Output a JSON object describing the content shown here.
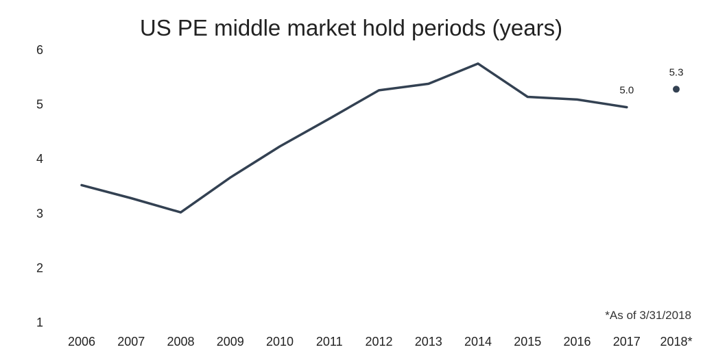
{
  "chart_data": {
    "type": "line",
    "title": "US PE middle market hold periods (years)",
    "xlabel": "",
    "ylabel": "",
    "categories": [
      "2006",
      "2007",
      "2008",
      "2009",
      "2010",
      "2011",
      "2012",
      "2013",
      "2014",
      "2015",
      "2016",
      "2017",
      "2018*"
    ],
    "y_ticks": [
      1,
      2,
      3,
      4,
      5,
      6
    ],
    "ylim": [
      1,
      6
    ],
    "grid": false,
    "series": [
      {
        "values": [
          3.52,
          3.28,
          3.02,
          3.66,
          4.23,
          4.74,
          5.26,
          5.38,
          5.75,
          5.14,
          5.09,
          4.95,
          5.28
        ],
        "color": "#334152",
        "style": "line",
        "separate_last_point": true
      }
    ],
    "data_labels": [
      {
        "category": "2017",
        "text": "5.0"
      },
      {
        "category": "2018*",
        "text": "5.3"
      }
    ],
    "footnote": "*As of 3/31/2018"
  }
}
